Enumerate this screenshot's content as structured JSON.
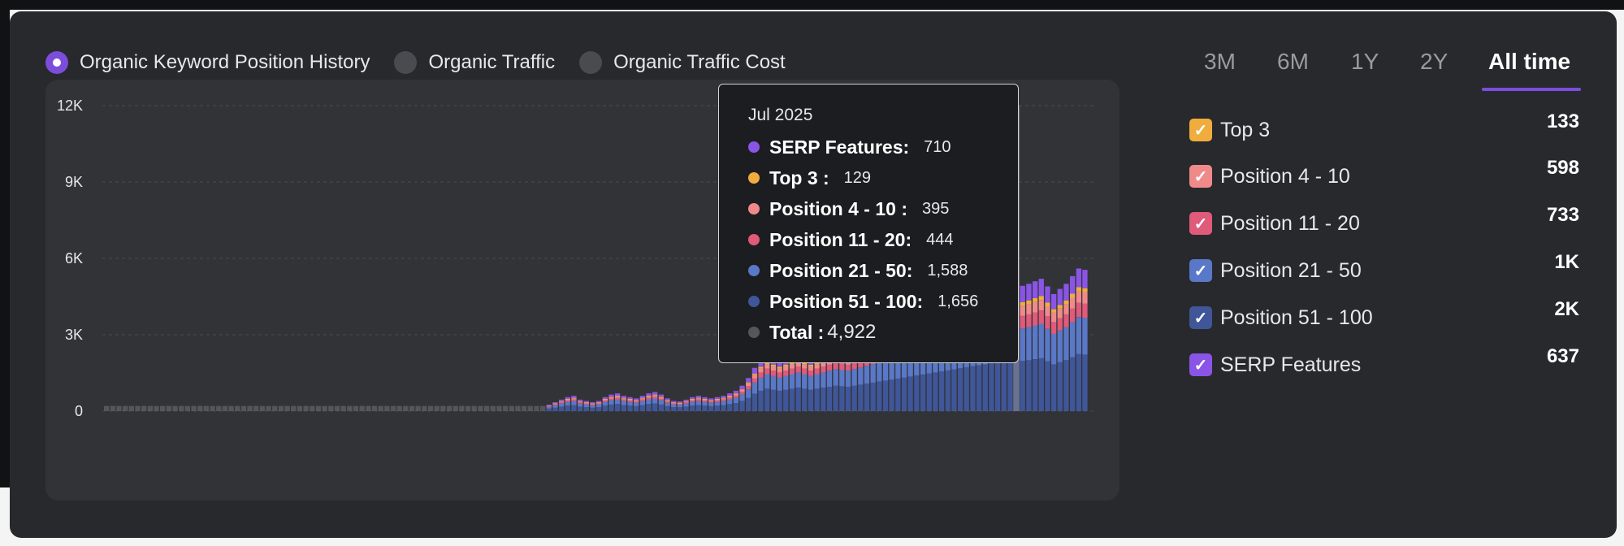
{
  "metric_selector": {
    "options": [
      {
        "label": "Organic Keyword Position History",
        "selected": true
      },
      {
        "label": "Organic Traffic",
        "selected": false
      },
      {
        "label": "Organic Traffic Cost",
        "selected": false
      }
    ]
  },
  "time_range": {
    "tabs": [
      "3M",
      "6M",
      "1Y",
      "2Y",
      "All time"
    ],
    "active": "All time"
  },
  "legend": [
    {
      "label": "Top 3",
      "value": "133",
      "color": "#f0ad3e",
      "checked": true
    },
    {
      "label": "Position 4 - 10",
      "value": "598",
      "color": "#f08a8a",
      "checked": true
    },
    {
      "label": "Position 11 - 20",
      "value": "733",
      "color": "#e05a7a",
      "checked": true
    },
    {
      "label": "Position 21 - 50",
      "value": "1K",
      "color": "#5a78c8",
      "checked": true
    },
    {
      "label": "Position 51 - 100",
      "value": "2K",
      "color": "#3f5699",
      "checked": true
    },
    {
      "label": "SERP Features",
      "value": "637",
      "color": "#8a55e6",
      "checked": true
    }
  ],
  "tooltip": {
    "date": "Jul 2025",
    "rows": [
      {
        "label": "SERP Features:",
        "value": "710",
        "color": "#8a55e6"
      },
      {
        "label": "Top 3 :",
        "value": "129",
        "color": "#f0ad3e"
      },
      {
        "label": "Position 4 - 10 :",
        "value": "395",
        "color": "#f08a8a"
      },
      {
        "label": "Position 11 - 20:",
        "value": "444",
        "color": "#e05a7a"
      },
      {
        "label": "Position 21 - 50:",
        "value": "1,588",
        "color": "#5a78c8"
      },
      {
        "label": "Position 51 - 100:",
        "value": "1,656",
        "color": "#3f5699"
      }
    ],
    "total_label": "Total :",
    "total_value": "4,922",
    "total_color": "#55565b"
  },
  "chart_data": {
    "type": "bar",
    "stacked": true,
    "y_ticks": [
      "0",
      "3K",
      "6K",
      "9K",
      "12K"
    ],
    "ylim": [
      0,
      12000
    ],
    "grid": true,
    "highlighted_bar": "Jul 2025",
    "series_order": [
      "Position 51 - 100",
      "Position 21 - 50",
      "Position 11 - 20",
      "Position 4 - 10",
      "Top 3",
      "SERP Features"
    ],
    "series_colors": [
      "#3f5699",
      "#5a78c8",
      "#e05a7a",
      "#f08a8a",
      "#f0ad3e",
      "#8a55e6"
    ],
    "totals": [
      200,
      200,
      200,
      200,
      200,
      200,
      200,
      200,
      200,
      200,
      200,
      200,
      200,
      200,
      200,
      200,
      200,
      200,
      200,
      200,
      200,
      200,
      200,
      200,
      200,
      200,
      200,
      200,
      200,
      200,
      200,
      200,
      200,
      200,
      200,
      200,
      200,
      200,
      200,
      200,
      200,
      200,
      200,
      200,
      200,
      200,
      200,
      200,
      200,
      200,
      200,
      200,
      200,
      200,
      200,
      200,
      200,
      200,
      200,
      200,
      200,
      200,
      200,
      200,
      200,
      200,
      200,
      200,
      200,
      200,
      200,
      250,
      350,
      450,
      550,
      600,
      450,
      400,
      350,
      400,
      550,
      650,
      700,
      600,
      550,
      500,
      600,
      700,
      750,
      650,
      500,
      400,
      380,
      450,
      550,
      600,
      550,
      500,
      550,
      600,
      700,
      800,
      1000,
      1300,
      1700,
      2000,
      2200,
      2100,
      2000,
      2100,
      2200,
      2300,
      2200,
      2100,
      2200,
      2300,
      2400,
      2500,
      2450,
      2400,
      2500,
      2600,
      2700,
      2800,
      2900,
      3000,
      3100,
      3200,
      3300,
      3400,
      3500,
      3600,
      3700,
      3800,
      3900,
      4000,
      4100,
      4200,
      4300,
      4400,
      4500,
      4600,
      4700,
      4800,
      4900,
      5000,
      5100,
      4922,
      5000,
      5100,
      5200,
      4900,
      4600,
      4800,
      5000,
      5300,
      5600,
      5550
    ]
  }
}
